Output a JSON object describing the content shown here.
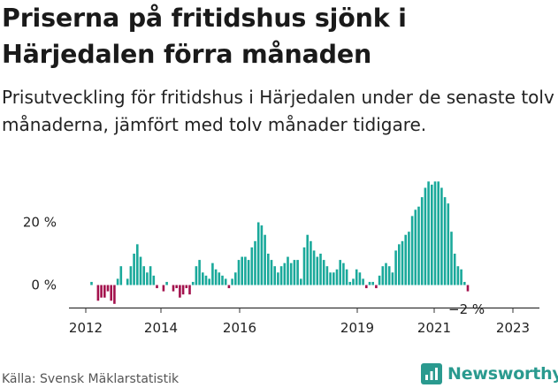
{
  "title": "Priserna på fritidshus sjönk i Härjedalen förra månaden",
  "subtitle": "Prisutveckling för fritidshus i Härjedalen under de senaste tolv månaderna, jämfört med tolv månader tidigare.",
  "source": "Källa: Svensk Mäklarstatistik",
  "brand": "Newsworthy",
  "colors": {
    "positive": "#1aa99b",
    "negative": "#a3114c",
    "axis": "#333333",
    "brand": "#2a9a8f"
  },
  "chart_data": {
    "type": "bar",
    "x_ticks": [
      "2012",
      "2014",
      "2016",
      "2019",
      "2021",
      "2023"
    ],
    "y_ticks": [
      "0 %",
      "20 %"
    ],
    "ylim": [
      -7,
      34
    ],
    "last_value_label": "−2 %",
    "series": [
      {
        "values": [
          1,
          0,
          -5,
          -4,
          -4,
          -2,
          -5,
          -6,
          2,
          6,
          0,
          2,
          6,
          10,
          13,
          9,
          6,
          4,
          6,
          3,
          -1,
          0,
          -2,
          1,
          0,
          -2,
          -1,
          -4,
          -3,
          -1,
          -3,
          1,
          6,
          8,
          4,
          3,
          2,
          7,
          5,
          4,
          3,
          2,
          -1,
          2,
          4,
          8,
          9,
          9,
          8,
          12,
          14,
          20,
          19,
          16,
          10,
          8,
          6,
          4,
          6,
          7,
          9,
          7,
          8,
          8,
          2,
          12,
          16,
          14,
          11,
          9,
          10,
          8,
          6,
          4,
          4,
          5,
          8,
          7,
          5,
          1,
          2,
          5,
          4,
          2,
          -1,
          1,
          1,
          -1,
          3,
          6,
          7,
          6,
          4,
          11,
          13,
          14,
          16,
          17,
          22,
          24,
          25,
          28,
          31,
          33,
          32,
          33,
          33,
          31,
          28,
          26,
          17,
          10,
          6,
          5,
          1,
          -2
        ]
      }
    ]
  }
}
